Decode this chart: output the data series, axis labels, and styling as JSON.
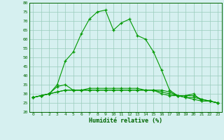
{
  "xlabel": "Humidité relative (%)",
  "bg_color": "#d6f0f0",
  "grid_color": "#99ccbb",
  "line_color": "#009900",
  "xlim": [
    -0.5,
    23.5
  ],
  "ylim": [
    20,
    80
  ],
  "yticks": [
    20,
    25,
    30,
    35,
    40,
    45,
    50,
    55,
    60,
    65,
    70,
    75,
    80
  ],
  "xticks": [
    0,
    1,
    2,
    3,
    4,
    5,
    6,
    7,
    8,
    9,
    10,
    11,
    12,
    13,
    14,
    15,
    16,
    17,
    18,
    19,
    20,
    21,
    22,
    23
  ],
  "series": [
    [
      28,
      29,
      30,
      35,
      48,
      53,
      63,
      71,
      75,
      76,
      65,
      69,
      71,
      62,
      60,
      53,
      43,
      32,
      29,
      29,
      30,
      26,
      26,
      25
    ],
    [
      28,
      29,
      30,
      34,
      35,
      32,
      32,
      33,
      33,
      33,
      33,
      33,
      33,
      33,
      32,
      32,
      32,
      31,
      29,
      28,
      28,
      27,
      26,
      25
    ],
    [
      28,
      29,
      30,
      31,
      32,
      32,
      32,
      32,
      32,
      32,
      32,
      32,
      32,
      32,
      32,
      32,
      31,
      30,
      29,
      29,
      29,
      27,
      26,
      25
    ],
    [
      28,
      29,
      30,
      31,
      32,
      32,
      32,
      32,
      32,
      32,
      32,
      32,
      32,
      32,
      32,
      32,
      30,
      29,
      29,
      28,
      27,
      26,
      26,
      25
    ]
  ]
}
